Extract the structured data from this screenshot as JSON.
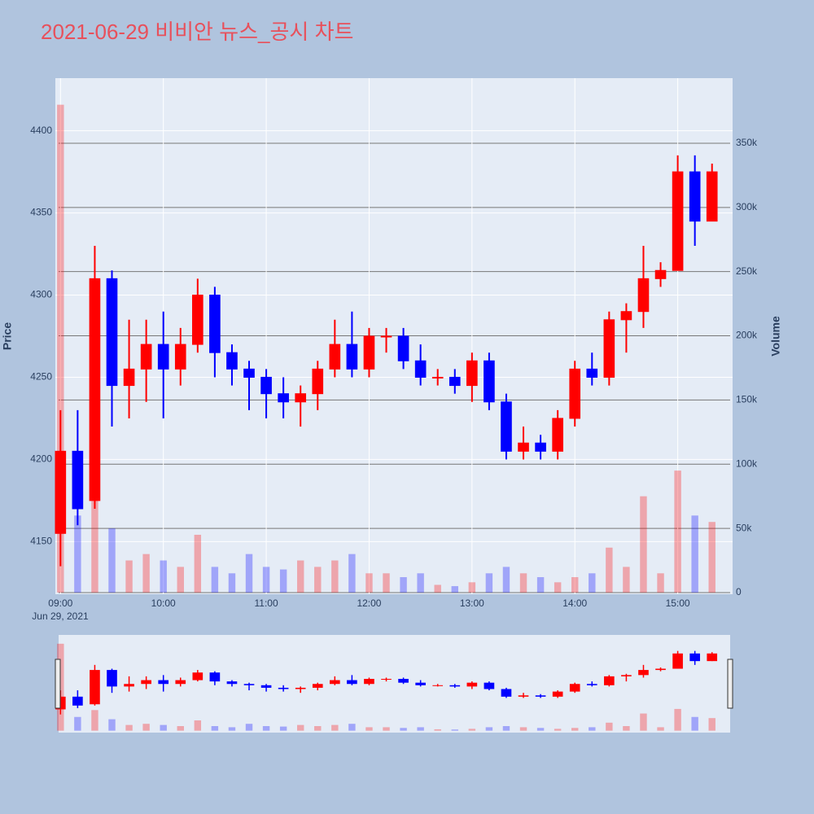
{
  "chart_data": {
    "type": "candlestick",
    "title": "2021-06-29 비비안 뉴스_공시 차트",
    "yaxis_title": "Price",
    "y2axis_title": "Volume",
    "date_label": "Jun 29, 2021",
    "increasing_color": "#ff0000",
    "decreasing_color": "#0000ff",
    "x": [
      "2021-06-29 09:00",
      "2021-06-29 09:10",
      "2021-06-29 09:20",
      "2021-06-29 09:30",
      "2021-06-29 09:40",
      "2021-06-29 09:50",
      "2021-06-29 10:00",
      "2021-06-29 10:10",
      "2021-06-29 10:20",
      "2021-06-29 10:30",
      "2021-06-29 10:40",
      "2021-06-29 10:50",
      "2021-06-29 11:00",
      "2021-06-29 11:10",
      "2021-06-29 11:20",
      "2021-06-29 11:30",
      "2021-06-29 11:40",
      "2021-06-29 11:50",
      "2021-06-29 12:00",
      "2021-06-29 12:10",
      "2021-06-29 12:20",
      "2021-06-29 12:30",
      "2021-06-29 12:40",
      "2021-06-29 12:50",
      "2021-06-29 13:00",
      "2021-06-29 13:10",
      "2021-06-29 13:20",
      "2021-06-29 13:30",
      "2021-06-29 13:40",
      "2021-06-29 13:50",
      "2021-06-29 14:00",
      "2021-06-29 14:10",
      "2021-06-29 14:20",
      "2021-06-29 14:30",
      "2021-06-29 14:40",
      "2021-06-29 14:50",
      "2021-06-29 15:00",
      "2021-06-29 15:10",
      "2021-06-29 15:20"
    ],
    "open": [
      4155,
      4205,
      4175,
      4310,
      4245,
      4255,
      4270,
      4255,
      4270,
      4300,
      4265,
      4255,
      4250,
      4240,
      4235,
      4240,
      4255,
      4270,
      4255,
      4275,
      4275,
      4260,
      4250,
      4250,
      4245,
      4260,
      4235,
      4205,
      4210,
      4205,
      4225,
      4255,
      4250,
      4285,
      4290,
      4310,
      4315,
      4375,
      4345
    ],
    "high": [
      4230,
      4230,
      4330,
      4315,
      4285,
      4285,
      4290,
      4280,
      4310,
      4305,
      4270,
      4260,
      4255,
      4250,
      4245,
      4260,
      4285,
      4290,
      4280,
      4280,
      4280,
      4270,
      4255,
      4255,
      4265,
      4265,
      4240,
      4220,
      4215,
      4230,
      4260,
      4265,
      4290,
      4295,
      4330,
      4320,
      4385,
      4385,
      4380
    ],
    "low": [
      4135,
      4160,
      4170,
      4220,
      4225,
      4235,
      4225,
      4245,
      4265,
      4250,
      4245,
      4230,
      4225,
      4225,
      4220,
      4230,
      4250,
      4250,
      4250,
      4265,
      4255,
      4245,
      4245,
      4240,
      4235,
      4230,
      4200,
      4200,
      4200,
      4200,
      4220,
      4245,
      4245,
      4265,
      4280,
      4305,
      4315,
      4330,
      4345
    ],
    "close": [
      4205,
      4170,
      4310,
      4245,
      4255,
      4270,
      4255,
      4270,
      4300,
      4265,
      4255,
      4250,
      4240,
      4235,
      4240,
      4255,
      4270,
      4255,
      4275,
      4275,
      4260,
      4250,
      4250,
      4245,
      4260,
      4235,
      4205,
      4210,
      4205,
      4225,
      4255,
      4250,
      4285,
      4290,
      4310,
      4315,
      4375,
      4345,
      4375
    ],
    "volume": [
      380000,
      60000,
      90000,
      50000,
      25000,
      30000,
      25000,
      20000,
      45000,
      20000,
      15000,
      30000,
      20000,
      18000,
      25000,
      20000,
      25000,
      30000,
      15000,
      15000,
      12000,
      15000,
      6000,
      5000,
      8000,
      15000,
      20000,
      15000,
      12000,
      8000,
      12000,
      15000,
      35000,
      20000,
      75000,
      15000,
      95000,
      60000,
      55000
    ],
    "xlim": [
      "2021-06-29 08:57",
      "2021-06-29 15:32"
    ],
    "xticks": [
      {
        "value": "2021-06-29 09:00",
        "label": "09:00"
      },
      {
        "value": "2021-06-29 10:00",
        "label": "10:00"
      },
      {
        "value": "2021-06-29 11:00",
        "label": "11:00"
      },
      {
        "value": "2021-06-29 12:00",
        "label": "12:00"
      },
      {
        "value": "2021-06-29 13:00",
        "label": "13:00"
      },
      {
        "value": "2021-06-29 14:00",
        "label": "14:00"
      },
      {
        "value": "2021-06-29 15:00",
        "label": "15:00"
      }
    ],
    "ylim": [
      4118,
      4432
    ],
    "yticks": [
      4150,
      4200,
      4250,
      4300,
      4350,
      4400
    ],
    "y2lim": [
      -1300,
      400700
    ],
    "y2ticks": [
      0,
      {
        "value": 50000,
        "label": "50k"
      },
      {
        "value": 100000,
        "label": "100k"
      },
      {
        "value": 150000,
        "label": "150k"
      },
      {
        "value": 200000,
        "label": "200k"
      },
      {
        "value": 250000,
        "label": "250k"
      },
      {
        "value": 300000,
        "label": "300k"
      },
      {
        "value": 350000,
        "label": "350k"
      }
    ],
    "rangeslider": true
  }
}
